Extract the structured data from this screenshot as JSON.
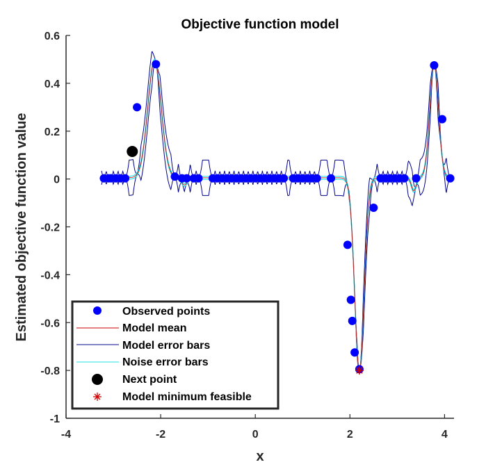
{
  "chart_data": {
    "type": "line",
    "title": "Objective function model",
    "xlabel": "x",
    "ylabel": "Estimated objective function value",
    "xlim": [
      -4,
      4.2
    ],
    "ylim": [
      -1,
      0.6
    ],
    "xticks": [
      -4,
      -2,
      0,
      2,
      4
    ],
    "yticks": [
      -1,
      -0.8,
      -0.6,
      -0.4,
      -0.2,
      0,
      0.2,
      0.4,
      0.6
    ],
    "xtick_labels": [
      "-4",
      "-2",
      "0",
      "2",
      "4"
    ],
    "ytick_labels": [
      "-1",
      "-0.8",
      "-0.6",
      "-0.4",
      "-0.2",
      "0",
      "0.2",
      "0.4",
      "0.6"
    ],
    "grid": false,
    "legend_position": "bottom-left",
    "colors": {
      "observed": "#0000ff",
      "model_mean": "#cc0000",
      "model_error": "#00008b",
      "noise_error": "#22e0e8",
      "next_point": "#000000",
      "minimum": "#cc0000",
      "axis": "#262626"
    },
    "series": [
      {
        "name": "Observed points",
        "kind": "scatter",
        "x": [
          -3.2,
          -3.1,
          -3.05,
          -2.95,
          -2.85,
          -2.75,
          -2.5,
          -2.1,
          -1.7,
          -1.55,
          -1.45,
          -1.3,
          -1.2,
          -0.9,
          -0.8,
          -0.7,
          -0.6,
          -0.5,
          -0.4,
          -0.3,
          -0.2,
          -0.1,
          0.0,
          0.1,
          0.2,
          0.3,
          0.4,
          0.5,
          0.6,
          0.8,
          0.9,
          1.0,
          1.1,
          1.2,
          1.3,
          1.6,
          1.95,
          2.02,
          2.05,
          2.1,
          2.2,
          2.5,
          2.65,
          2.75,
          2.85,
          2.95,
          3.05,
          3.15,
          3.4,
          3.78,
          3.95,
          4.12
        ],
        "y": [
          0.003,
          0.003,
          0.003,
          0.003,
          0.003,
          0.003,
          0.3,
          0.48,
          0.01,
          0.003,
          0.003,
          0.003,
          0.003,
          0.003,
          0.003,
          0.003,
          0.003,
          0.003,
          0.003,
          0.003,
          0.003,
          0.003,
          0.003,
          0.003,
          0.003,
          0.003,
          0.003,
          0.003,
          0.003,
          0.003,
          0.003,
          0.003,
          0.003,
          0.003,
          0.003,
          0.003,
          -0.275,
          -0.505,
          -0.593,
          -0.725,
          -0.795,
          -0.12,
          0.003,
          0.003,
          0.003,
          0.003,
          0.003,
          0.003,
          0.003,
          0.475,
          0.25,
          0.003
        ]
      },
      {
        "name": "Model mean",
        "kind": "line"
      },
      {
        "name": "Model error bars",
        "kind": "line"
      },
      {
        "name": "Noise error bars",
        "kind": "line"
      },
      {
        "name": "Next point",
        "kind": "scatter",
        "x": [
          -2.6
        ],
        "y": [
          0.115
        ]
      },
      {
        "name": "Model minimum feasible",
        "kind": "scatter",
        "x": [
          2.2
        ],
        "y": [
          -0.8
        ]
      }
    ]
  }
}
